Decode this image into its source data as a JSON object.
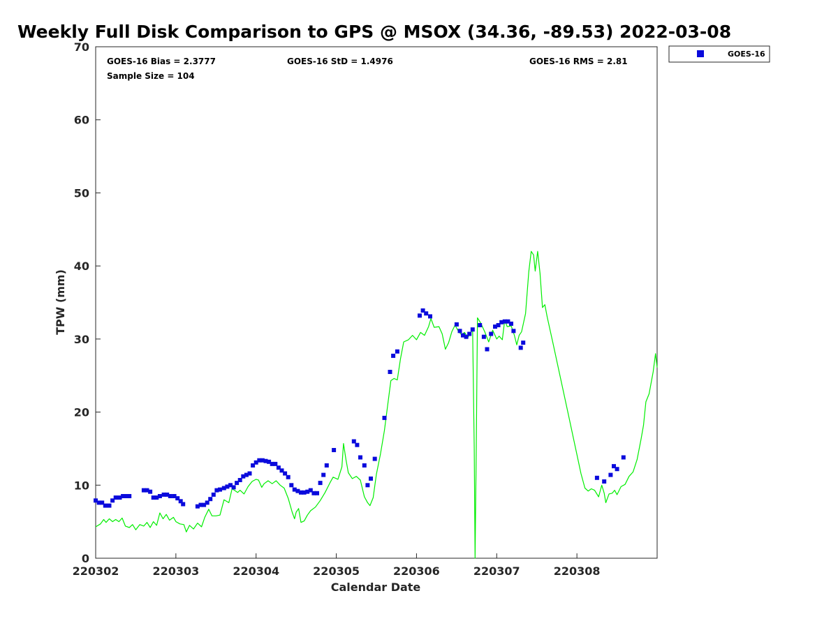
{
  "chart_data": {
    "type": "line+scatter",
    "title": "Weekly Full Disk Comparison to GPS @ MSOX (34.36, -89.53) 2022-03-08",
    "xlabel": "Calendar Date",
    "ylabel": "TPW (mm)",
    "xlim": [
      0,
      7
    ],
    "ylim": [
      0,
      70
    ],
    "x_ticks": [
      {
        "value": 0,
        "label": "220302"
      },
      {
        "value": 1,
        "label": "220303"
      },
      {
        "value": 2,
        "label": "220304"
      },
      {
        "value": 3,
        "label": "220305"
      },
      {
        "value": 4,
        "label": "220306"
      },
      {
        "value": 5,
        "label": "220307"
      },
      {
        "value": 6,
        "label": "220308"
      }
    ],
    "y_ticks": [
      0,
      10,
      20,
      30,
      40,
      50,
      60,
      70
    ],
    "grid": false,
    "legend": {
      "placement": "outside-top-right",
      "entries": [
        "GOES-16"
      ]
    },
    "stats": {
      "bias": "GOES-16 Bias = 2.3777",
      "std": "GOES-16 StD = 1.4976",
      "rms": "GOES-16 RMS = 2.81",
      "sample": "Sample Size = 104"
    },
    "series": [
      {
        "name": "GOES-16",
        "kind": "scatter",
        "color": "#0a0adc",
        "points": [
          [
            0.0,
            7.9
          ],
          [
            0.04,
            7.6
          ],
          [
            0.08,
            7.6
          ],
          [
            0.12,
            7.2
          ],
          [
            0.17,
            7.2
          ],
          [
            0.21,
            7.9
          ],
          [
            0.25,
            8.3
          ],
          [
            0.3,
            8.3
          ],
          [
            0.34,
            8.5
          ],
          [
            0.38,
            8.5
          ],
          [
            0.42,
            8.5
          ],
          [
            0.6,
            9.3
          ],
          [
            0.64,
            9.3
          ],
          [
            0.68,
            9.1
          ],
          [
            0.72,
            8.3
          ],
          [
            0.76,
            8.3
          ],
          [
            0.8,
            8.5
          ],
          [
            0.85,
            8.7
          ],
          [
            0.89,
            8.7
          ],
          [
            0.93,
            8.5
          ],
          [
            0.98,
            8.5
          ],
          [
            1.02,
            8.2
          ],
          [
            1.06,
            7.8
          ],
          [
            1.09,
            7.4
          ],
          [
            1.27,
            7.1
          ],
          [
            1.31,
            7.3
          ],
          [
            1.35,
            7.3
          ],
          [
            1.39,
            7.6
          ],
          [
            1.43,
            8.1
          ],
          [
            1.47,
            8.7
          ],
          [
            1.51,
            9.3
          ],
          [
            1.55,
            9.4
          ],
          [
            1.6,
            9.6
          ],
          [
            1.64,
            9.8
          ],
          [
            1.68,
            10.0
          ],
          [
            1.72,
            9.7
          ],
          [
            1.76,
            10.3
          ],
          [
            1.8,
            10.7
          ],
          [
            1.84,
            11.2
          ],
          [
            1.88,
            11.4
          ],
          [
            1.92,
            11.6
          ],
          [
            1.96,
            12.7
          ],
          [
            2.0,
            13.1
          ],
          [
            2.04,
            13.4
          ],
          [
            2.08,
            13.4
          ],
          [
            2.12,
            13.3
          ],
          [
            2.16,
            13.2
          ],
          [
            2.2,
            12.9
          ],
          [
            2.24,
            12.9
          ],
          [
            2.28,
            12.4
          ],
          [
            2.32,
            12.0
          ],
          [
            2.36,
            11.6
          ],
          [
            2.4,
            11.1
          ],
          [
            2.44,
            10.0
          ],
          [
            2.48,
            9.4
          ],
          [
            2.52,
            9.2
          ],
          [
            2.56,
            9.0
          ],
          [
            2.6,
            9.0
          ],
          [
            2.64,
            9.1
          ],
          [
            2.68,
            9.3
          ],
          [
            2.72,
            8.9
          ],
          [
            2.76,
            8.9
          ],
          [
            2.8,
            10.3
          ],
          [
            2.84,
            11.4
          ],
          [
            2.88,
            12.7
          ],
          [
            2.97,
            14.8
          ],
          [
            3.22,
            16.0
          ],
          [
            3.26,
            15.5
          ],
          [
            3.3,
            13.8
          ],
          [
            3.35,
            12.7
          ],
          [
            3.39,
            10.0
          ],
          [
            3.43,
            10.9
          ],
          [
            3.48,
            13.6
          ],
          [
            3.6,
            19.2
          ],
          [
            3.67,
            25.5
          ],
          [
            3.71,
            27.7
          ],
          [
            3.76,
            28.3
          ],
          [
            4.04,
            33.2
          ],
          [
            4.08,
            33.9
          ],
          [
            4.12,
            33.5
          ],
          [
            4.17,
            33.1
          ],
          [
            4.5,
            32.0
          ],
          [
            4.54,
            31.1
          ],
          [
            4.58,
            30.5
          ],
          [
            4.62,
            30.3
          ],
          [
            4.66,
            30.7
          ],
          [
            4.7,
            31.3
          ],
          [
            4.79,
            31.9
          ],
          [
            4.84,
            30.3
          ],
          [
            4.88,
            28.6
          ],
          [
            4.93,
            30.7
          ],
          [
            4.98,
            31.7
          ],
          [
            5.02,
            31.9
          ],
          [
            5.06,
            32.3
          ],
          [
            5.1,
            32.4
          ],
          [
            5.14,
            32.4
          ],
          [
            5.18,
            32.1
          ],
          [
            5.21,
            31.1
          ],
          [
            5.3,
            28.8
          ],
          [
            5.33,
            29.5
          ],
          [
            6.25,
            11.0
          ],
          [
            6.34,
            10.5
          ],
          [
            6.42,
            11.4
          ],
          [
            6.46,
            12.6
          ],
          [
            6.5,
            12.2
          ],
          [
            6.58,
            13.8
          ]
        ]
      },
      {
        "name": "GPS",
        "kind": "line",
        "color": "#00ee00",
        "points": [
          [
            0.0,
            4.3
          ],
          [
            0.06,
            4.7
          ],
          [
            0.1,
            5.3
          ],
          [
            0.13,
            4.9
          ],
          [
            0.17,
            5.4
          ],
          [
            0.21,
            5.0
          ],
          [
            0.25,
            5.3
          ],
          [
            0.29,
            5.0
          ],
          [
            0.33,
            5.5
          ],
          [
            0.37,
            4.4
          ],
          [
            0.42,
            4.2
          ],
          [
            0.46,
            4.6
          ],
          [
            0.5,
            3.9
          ],
          [
            0.55,
            4.6
          ],
          [
            0.6,
            4.4
          ],
          [
            0.64,
            4.9
          ],
          [
            0.68,
            4.2
          ],
          [
            0.72,
            5.0
          ],
          [
            0.76,
            4.5
          ],
          [
            0.8,
            6.2
          ],
          [
            0.84,
            5.4
          ],
          [
            0.88,
            6.0
          ],
          [
            0.92,
            5.2
          ],
          [
            0.97,
            5.6
          ],
          [
            1.0,
            5.0
          ],
          [
            1.05,
            4.7
          ],
          [
            1.1,
            4.6
          ],
          [
            1.13,
            3.6
          ],
          [
            1.17,
            4.5
          ],
          [
            1.22,
            4.0
          ],
          [
            1.27,
            4.8
          ],
          [
            1.32,
            4.3
          ],
          [
            1.36,
            5.6
          ],
          [
            1.41,
            6.7
          ],
          [
            1.45,
            5.8
          ],
          [
            1.5,
            5.8
          ],
          [
            1.55,
            5.9
          ],
          [
            1.6,
            8.0
          ],
          [
            1.66,
            7.6
          ],
          [
            1.7,
            9.5
          ],
          [
            1.73,
            9.3
          ],
          [
            1.77,
            9.0
          ],
          [
            1.8,
            9.3
          ],
          [
            1.85,
            8.8
          ],
          [
            1.9,
            9.8
          ],
          [
            1.95,
            10.5
          ],
          [
            2.0,
            10.8
          ],
          [
            2.03,
            10.7
          ],
          [
            2.07,
            9.7
          ],
          [
            2.1,
            10.2
          ],
          [
            2.15,
            10.6
          ],
          [
            2.2,
            10.2
          ],
          [
            2.25,
            10.6
          ],
          [
            2.3,
            10.0
          ],
          [
            2.35,
            9.6
          ],
          [
            2.4,
            8.2
          ],
          [
            2.45,
            6.3
          ],
          [
            2.48,
            5.4
          ],
          [
            2.5,
            6.3
          ],
          [
            2.53,
            6.8
          ],
          [
            2.56,
            4.9
          ],
          [
            2.6,
            5.1
          ],
          [
            2.64,
            5.9
          ],
          [
            2.68,
            6.5
          ],
          [
            2.74,
            7.0
          ],
          [
            2.8,
            7.9
          ],
          [
            2.86,
            9.0
          ],
          [
            2.92,
            10.3
          ],
          [
            2.96,
            11.1
          ],
          [
            3.02,
            10.8
          ],
          [
            3.07,
            12.5
          ],
          [
            3.09,
            15.7
          ],
          [
            3.12,
            13.5
          ],
          [
            3.15,
            11.7
          ],
          [
            3.2,
            10.9
          ],
          [
            3.25,
            11.2
          ],
          [
            3.3,
            10.7
          ],
          [
            3.35,
            8.4
          ],
          [
            3.39,
            7.6
          ],
          [
            3.42,
            7.2
          ],
          [
            3.46,
            8.3
          ],
          [
            3.5,
            11.5
          ],
          [
            3.55,
            14.2
          ],
          [
            3.6,
            17.5
          ],
          [
            3.64,
            20.9
          ],
          [
            3.68,
            24.3
          ],
          [
            3.72,
            24.6
          ],
          [
            3.76,
            24.4
          ],
          [
            3.8,
            27.3
          ],
          [
            3.84,
            29.6
          ],
          [
            3.9,
            29.9
          ],
          [
            3.95,
            30.5
          ],
          [
            4.0,
            29.9
          ],
          [
            4.05,
            30.9
          ],
          [
            4.1,
            30.5
          ],
          [
            4.15,
            31.7
          ],
          [
            4.18,
            32.8
          ],
          [
            4.22,
            31.6
          ],
          [
            4.28,
            31.7
          ],
          [
            4.32,
            30.7
          ],
          [
            4.36,
            28.6
          ],
          [
            4.4,
            29.5
          ],
          [
            4.44,
            31.0
          ],
          [
            4.48,
            31.9
          ],
          [
            4.52,
            31.1
          ],
          [
            4.56,
            30.6
          ],
          [
            4.6,
            30.9
          ],
          [
            4.64,
            30.2
          ],
          [
            4.67,
            30.8
          ],
          [
            4.7,
            31.2
          ],
          [
            4.72,
            15.0
          ],
          [
            4.73,
            0.0
          ],
          [
            4.745,
            15.0
          ],
          [
            4.76,
            32.9
          ],
          [
            4.8,
            32.2
          ],
          [
            4.85,
            31.0
          ],
          [
            4.9,
            29.6
          ],
          [
            4.95,
            31.2
          ],
          [
            5.0,
            30.0
          ],
          [
            5.03,
            30.4
          ],
          [
            5.07,
            29.9
          ],
          [
            5.1,
            32.6
          ],
          [
            5.13,
            31.7
          ],
          [
            5.18,
            31.8
          ],
          [
            5.22,
            30.5
          ],
          [
            5.25,
            29.2
          ],
          [
            5.28,
            30.5
          ],
          [
            5.31,
            31.0
          ],
          [
            5.36,
            33.5
          ],
          [
            5.4,
            39.2
          ],
          [
            5.43,
            42.0
          ],
          [
            5.46,
            41.5
          ],
          [
            5.48,
            39.3
          ],
          [
            5.51,
            42.0
          ],
          [
            5.54,
            39.0
          ],
          [
            5.57,
            34.3
          ],
          [
            5.6,
            34.7
          ],
          [
            5.63,
            33.0
          ],
          [
            5.7,
            29.5
          ],
          [
            5.8,
            24.4
          ],
          [
            5.9,
            19.3
          ],
          [
            6.0,
            14.2
          ],
          [
            6.05,
            11.6
          ],
          [
            6.1,
            9.6
          ],
          [
            6.14,
            9.2
          ],
          [
            6.18,
            9.5
          ],
          [
            6.22,
            9.3
          ],
          [
            6.27,
            8.4
          ],
          [
            6.31,
            10.0
          ],
          [
            6.34,
            8.9
          ],
          [
            6.36,
            7.6
          ],
          [
            6.4,
            8.8
          ],
          [
            6.44,
            8.9
          ],
          [
            6.47,
            9.3
          ],
          [
            6.5,
            8.7
          ],
          [
            6.55,
            9.8
          ],
          [
            6.6,
            10.1
          ],
          [
            6.65,
            11.2
          ],
          [
            6.7,
            11.8
          ],
          [
            6.75,
            13.5
          ],
          [
            6.8,
            16.3
          ],
          [
            6.83,
            18.2
          ],
          [
            6.86,
            21.4
          ],
          [
            6.9,
            22.5
          ],
          [
            6.95,
            25.5
          ],
          [
            6.98,
            28.0
          ],
          [
            7.0,
            26.1
          ]
        ]
      }
    ]
  }
}
